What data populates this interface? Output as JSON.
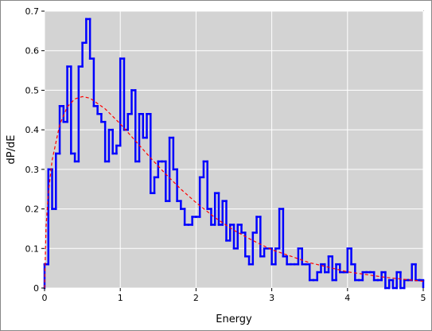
{
  "chart_data": {
    "type": "histogram",
    "xlabel": "Energy",
    "ylabel": "dP/dE",
    "xlim": [
      0,
      5
    ],
    "ylim": [
      0,
      0.7
    ],
    "xticks": [
      0,
      1,
      2,
      3,
      4,
      5
    ],
    "yticks": [
      0,
      0.1,
      0.2,
      0.3,
      0.4,
      0.5,
      0.6,
      0.7
    ],
    "grid": true,
    "layers": [
      {
        "type": "histogram",
        "color": "#0000ff",
        "bins": [
          0,
          0.05,
          0.1,
          0.15,
          0.2,
          0.25,
          0.3,
          0.35,
          0.4,
          0.45,
          0.5,
          0.55,
          0.6,
          0.65,
          0.7,
          0.75,
          0.8,
          0.85,
          0.9,
          0.95,
          1,
          1.05,
          1.1,
          1.15,
          1.2,
          1.25,
          1.3,
          1.35,
          1.4,
          1.45,
          1.5,
          1.55,
          1.6,
          1.65,
          1.7,
          1.75,
          1.8,
          1.85,
          1.9,
          1.95,
          2,
          2.05,
          2.1,
          2.15,
          2.2,
          2.25,
          2.3,
          2.35,
          2.4,
          2.45,
          2.5,
          2.55,
          2.6,
          2.65,
          2.7,
          2.75,
          2.8,
          2.85,
          2.9,
          2.95,
          3,
          3.05,
          3.1,
          3.15,
          3.2,
          3.25,
          3.3,
          3.35,
          3.4,
          3.45,
          3.5,
          3.55,
          3.6,
          3.65,
          3.7,
          3.75,
          3.8,
          3.85,
          3.9,
          3.95,
          4,
          4.05,
          4.1,
          4.15,
          4.2,
          4.25,
          4.3,
          4.35,
          4.4,
          4.45,
          4.5,
          4.55,
          4.6,
          4.65,
          4.7,
          4.75,
          4.8,
          4.85,
          4.9,
          4.95,
          5
        ],
        "values": [
          0.06,
          0.3,
          0.2,
          0.34,
          0.46,
          0.42,
          0.56,
          0.34,
          0.32,
          0.56,
          0.62,
          0.68,
          0.58,
          0.46,
          0.44,
          0.42,
          0.32,
          0.4,
          0.34,
          0.36,
          0.58,
          0.4,
          0.44,
          0.5,
          0.32,
          0.44,
          0.38,
          0.44,
          0.24,
          0.28,
          0.32,
          0.32,
          0.22,
          0.38,
          0.3,
          0.22,
          0.2,
          0.16,
          0.16,
          0.18,
          0.18,
          0.28,
          0.32,
          0.2,
          0.16,
          0.24,
          0.16,
          0.22,
          0.12,
          0.16,
          0.1,
          0.16,
          0.14,
          0.08,
          0.06,
          0.14,
          0.18,
          0.08,
          0.1,
          0.1,
          0.06,
          0.1,
          0.2,
          0.08,
          0.06,
          0.06,
          0.06,
          0.1,
          0.06,
          0.06,
          0.02,
          0.02,
          0.04,
          0.06,
          0.04,
          0.08,
          0.02,
          0.06,
          0.04,
          0.04,
          0.1,
          0.06,
          0.02,
          0.02,
          0.04,
          0.04,
          0.04,
          0.02,
          0.02,
          0.04,
          0,
          0.02,
          0,
          0.04,
          0,
          0.02,
          0.02,
          0.06,
          0.02,
          0.02
        ]
      },
      {
        "type": "line",
        "color": "#ff0000",
        "style": "dashed",
        "x": [
          0,
          0.02,
          0.05,
          0.1,
          0.2,
          0.3,
          0.4,
          0.5,
          0.6,
          0.8,
          1,
          1.2,
          1.4,
          1.6,
          1.8,
          2,
          2.25,
          2.5,
          2.75,
          3,
          3.5,
          4,
          4.5,
          5
        ],
        "values": [
          0,
          0.156,
          0.24,
          0.323,
          0.413,
          0.458,
          0.478,
          0.484,
          0.48,
          0.453,
          0.415,
          0.372,
          0.329,
          0.288,
          0.25,
          0.216,
          0.178,
          0.146,
          0.12,
          0.097,
          0.064,
          0.041,
          0.027,
          0.017
        ]
      }
    ]
  }
}
